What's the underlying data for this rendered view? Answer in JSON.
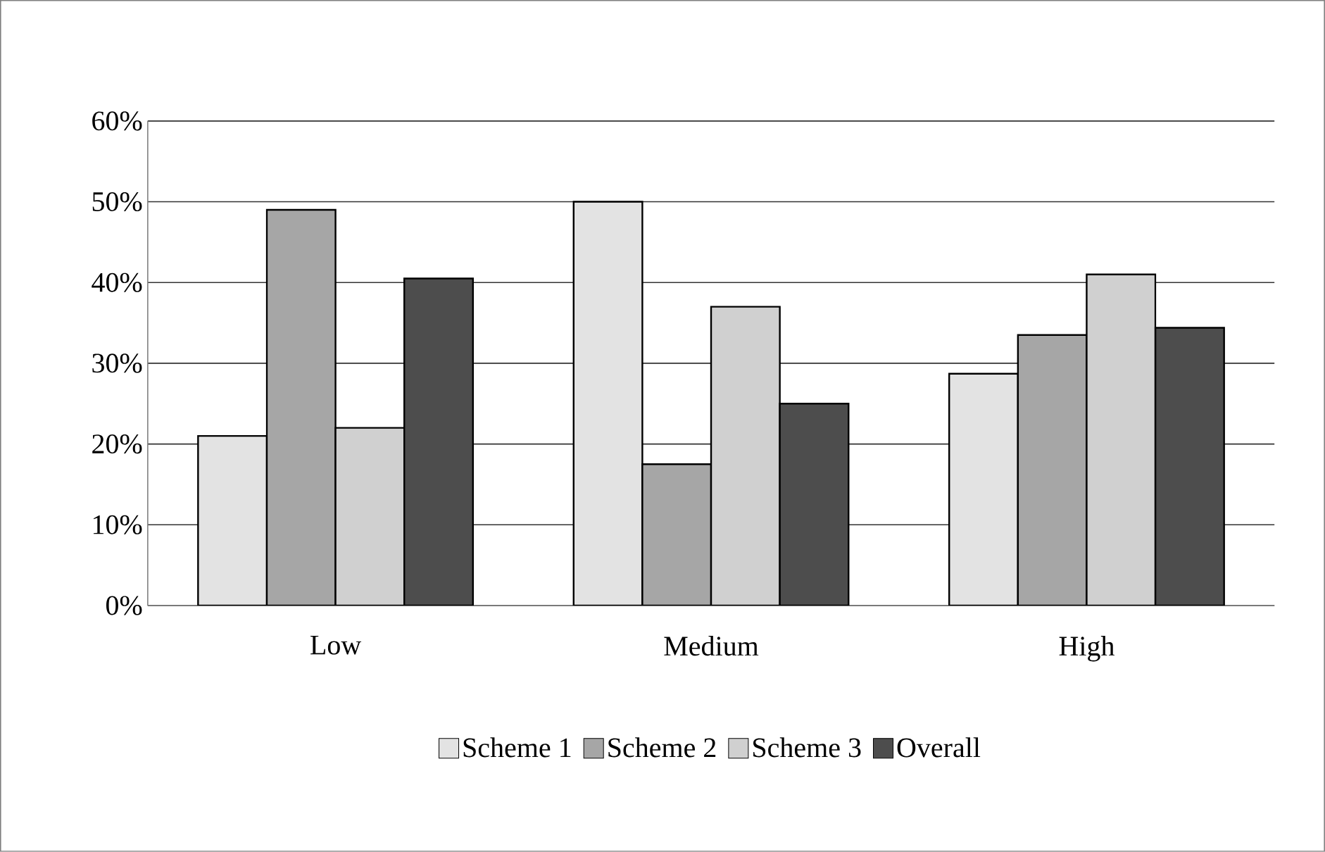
{
  "chart_data": {
    "type": "bar",
    "categories": [
      "Low",
      "Medium",
      "High"
    ],
    "series": [
      {
        "name": "Scheme 1",
        "color": "#e3e3e3",
        "values": [
          21,
          50,
          28.7
        ]
      },
      {
        "name": "Scheme 2",
        "color": "#a6a6a6",
        "values": [
          49,
          17.5,
          33.5
        ]
      },
      {
        "name": "Scheme 3",
        "color": "#d0d0d0",
        "values": [
          22,
          37,
          41
        ]
      },
      {
        "name": "Overall",
        "color": "#4d4d4d",
        "values": [
          40.5,
          25,
          34.4
        ]
      }
    ],
    "ylim": [
      0,
      60
    ],
    "yticks": [
      {
        "value": 0,
        "label": "0%"
      },
      {
        "value": 10,
        "label": "10%"
      },
      {
        "value": 20,
        "label": "20%"
      },
      {
        "value": 30,
        "label": "30%"
      },
      {
        "value": 40,
        "label": "40%"
      },
      {
        "value": 50,
        "label": "50%"
      },
      {
        "value": 60,
        "label": "60%"
      }
    ],
    "grid": "y",
    "legend": "bottom"
  }
}
